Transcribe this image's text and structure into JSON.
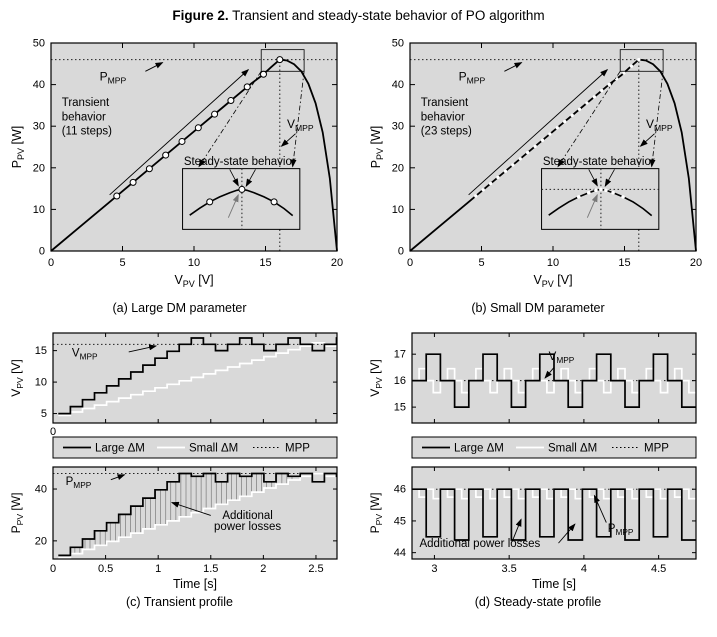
{
  "figure_title": {
    "bold": "Figure 2.",
    "rest": " Transient and steady-state behavior of PO algorithm"
  },
  "captions": {
    "a": "(a) Large DM parameter",
    "b": "(b) Small DM parameter",
    "c": "(c) Transient profile",
    "d": "(d) Steady-state profile"
  },
  "colors": {
    "plot_bg": "#d9d9d9",
    "curve": "#000000",
    "small_dm": "#ffffff",
    "gray_label": "#787878"
  },
  "chart_data": [
    {
      "id": "a",
      "type": "line",
      "title": "",
      "xlabel": "V_{PV} [V]",
      "ylabel": "P_{PV} [W]",
      "xlim": [
        0,
        20
      ],
      "ylim": [
        0,
        50
      ],
      "xticks": [
        0,
        5,
        10,
        15,
        20
      ],
      "yticks": [
        0,
        10,
        20,
        30,
        40,
        50
      ],
      "v_mpp": 16,
      "p_mpp": 46,
      "curve_x": [
        0,
        2,
        4,
        6,
        8,
        10,
        12,
        14,
        14.8,
        15.4,
        16,
        16.5,
        17,
        17.5,
        18,
        18.5,
        19,
        19.5,
        20
      ],
      "curve_y": [
        0,
        5.75,
        11.5,
        17.25,
        23,
        28.75,
        34.5,
        40.25,
        42.3,
        44.2,
        46,
        45.8,
        44.9,
        43.2,
        40.2,
        35.5,
        28.5,
        17.5,
        0
      ],
      "marker_style": "circle",
      "markers_x": [
        4.6,
        5.74,
        6.88,
        8.02,
        9.16,
        10.3,
        11.44,
        12.58,
        13.72,
        14.86,
        16
      ],
      "annotations": {
        "pmpp": "P_{MPP}",
        "vmpp": "V_{MPP}",
        "transient_lines": [
          "Transient",
          "behavior",
          "(11 steps)"
        ],
        "steady": "Steady-state behavior",
        "mpp": "MPP"
      }
    },
    {
      "id": "b",
      "type": "line",
      "title": "",
      "xlabel": "V_{PV} [V]",
      "ylabel": "P_{PV} [W]",
      "xlim": [
        0,
        20
      ],
      "ylim": [
        0,
        50
      ],
      "xticks": [
        0,
        5,
        10,
        15,
        20
      ],
      "yticks": [
        0,
        10,
        20,
        30,
        40,
        50
      ],
      "v_mpp": 16,
      "p_mpp": 46,
      "curve_x": [
        0,
        2,
        4,
        6,
        8,
        10,
        12,
        14,
        14.8,
        15.4,
        16,
        16.5,
        17,
        17.5,
        18,
        18.5,
        19,
        19.5,
        20
      ],
      "curve_y": [
        0,
        5.75,
        11.5,
        17.25,
        23,
        28.75,
        34.5,
        40.25,
        42.3,
        44.2,
        46,
        45.8,
        44.9,
        43.2,
        40.2,
        35.5,
        28.5,
        17.5,
        0
      ],
      "marker_style": "dot",
      "markers_x": [
        4.6,
        5.12,
        5.64,
        6.15,
        6.67,
        7.19,
        7.71,
        8.23,
        8.75,
        9.26,
        9.78,
        10.3,
        10.82,
        11.34,
        11.85,
        12.37,
        12.89,
        13.41,
        13.93,
        14.45,
        14.96,
        15.48,
        16
      ],
      "annotations": {
        "pmpp": "P_{MPP}",
        "vmpp": "V_{MPP}",
        "transient_lines": [
          "Transient",
          "behavior",
          "(23 steps)"
        ],
        "steady": "Steady-state behavior",
        "mpp": "MPP"
      }
    },
    {
      "id": "c",
      "type": "step-profile",
      "title": "",
      "xlabel": "Time [s]",
      "xlim": [
        0,
        2.7
      ],
      "xticks": [
        0,
        0.5,
        1,
        1.5,
        2,
        2.5
      ],
      "legend": [
        "Large ΔM",
        "Small ΔM",
        "MPP"
      ],
      "top": {
        "ylabel": "V_{PV} [V]",
        "ylim": [
          3.5,
          17.8
        ],
        "yticks": [
          5,
          10,
          15
        ],
        "mpp_value": 16,
        "mpp_label": "V_{MPP}",
        "x_zero_label": "0",
        "large": {
          "t0": 0.05,
          "dt": 0.115,
          "values": [
            5,
            6.1,
            7.2,
            8.3,
            9.4,
            10.5,
            11.6,
            12.7,
            13.8,
            14.9,
            16,
            17,
            16,
            15,
            16,
            17,
            16,
            15,
            16,
            17,
            16,
            15,
            16,
            17
          ]
        },
        "small": {
          "t0": 0.05,
          "dt": 0.115,
          "values": [
            4.7,
            5.25,
            5.8,
            6.35,
            6.9,
            7.45,
            8,
            8.55,
            9.1,
            9.65,
            10.2,
            10.75,
            11.3,
            11.85,
            12.4,
            12.95,
            13.5,
            14.05,
            14.6,
            15.15,
            15.7,
            16.25,
            15.7,
            16.25
          ]
        }
      },
      "bottom": {
        "ylabel": "P_{PV} [W]",
        "ylim": [
          13,
          48.5
        ],
        "yticks": [
          20,
          40
        ],
        "mpp_value": 46,
        "mpp_label": "P_{MPP}",
        "losses_lines": [
          "Additional",
          "power losses"
        ],
        "hatch": true,
        "large": {
          "t0": 0.05,
          "dt": 0.115,
          "values": [
            14.4,
            17.5,
            20.7,
            23.9,
            27,
            30.2,
            33.4,
            36.5,
            39.7,
            42.8,
            46,
            44.9,
            46,
            42.8,
            46,
            44.9,
            46,
            42.8,
            46,
            44.9,
            46,
            42.8,
            46,
            44.9
          ]
        },
        "small": {
          "t0": 0.05,
          "dt": 0.115,
          "values": [
            13.5,
            15.1,
            16.7,
            18.3,
            19.8,
            21.4,
            23,
            24.6,
            26.2,
            27.7,
            29.3,
            30.9,
            32.5,
            34.1,
            35.7,
            37.2,
            38.8,
            40.4,
            41.9,
            43.5,
            44.9,
            45.9,
            44.9,
            45.9
          ]
        }
      }
    },
    {
      "id": "d",
      "type": "step-profile",
      "title": "",
      "xlabel": "Time [s]",
      "xlim": [
        2.85,
        4.75
      ],
      "xticks": [
        3,
        3.5,
        4,
        4.5
      ],
      "legend": [
        "Large ΔM",
        "Small ΔM",
        "MPP"
      ],
      "top": {
        "ylabel": "V_{PV} [V]",
        "ylim": [
          14.4,
          17.8
        ],
        "yticks": [
          15,
          16,
          17
        ],
        "mpp_value": 16,
        "mpp_label": "V_{MPP}",
        "large": {
          "t0": 2.85,
          "dt": 0.095,
          "pattern": [
            16,
            17,
            16,
            15
          ],
          "repeat": 5
        },
        "small": {
          "t0": 2.85,
          "dt": 0.0475,
          "pattern": [
            16,
            16.45,
            16,
            15.55
          ],
          "repeat": 10
        }
      },
      "bottom": {
        "ylabel": "P_{PV} [W]",
        "ylim": [
          43.8,
          46.7
        ],
        "yticks": [
          44,
          45,
          46
        ],
        "mpp_value": 46,
        "mpp_label": "P_{MPP}",
        "losses_lines": [
          "Additional power losses"
        ],
        "hatch": false,
        "large": {
          "t0": 2.85,
          "dt": 0.095,
          "pattern": [
            46,
            44.5,
            46,
            44.4
          ],
          "repeat": 5
        },
        "small": {
          "t0": 2.85,
          "dt": 0.0475,
          "pattern": [
            46,
            45.75,
            46,
            45.7
          ],
          "repeat": 10
        }
      }
    }
  ]
}
